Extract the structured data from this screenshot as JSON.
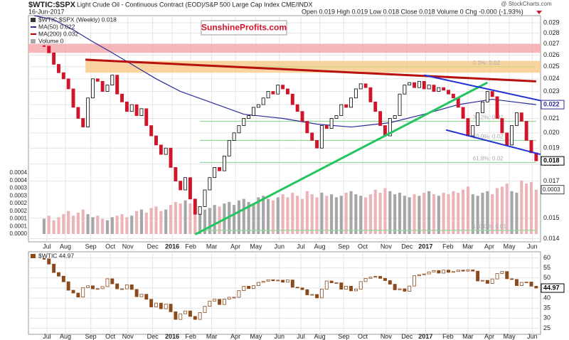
{
  "chart_data": [
    {
      "type": "candlestick",
      "symbol": "$WTIC:$SPX",
      "title": "Light Crude Oil - Continuous Contract (EOD)/S&P 500 Large Cap Index CME/INDX",
      "source": "@ StockCharts.com",
      "date": "16-Jun-2017",
      "quote": "Open 0.019  High 0.019  Low 0.018  Close 0.018  Volume 0  Chg -0.000 (-1.93%)",
      "legend": [
        {
          "text": "$WTIC:$SPX (Weekly) 0.018",
          "color": "#333333"
        },
        {
          "text": "MA(50) 0.022",
          "color": "#2b2b9a"
        },
        {
          "text": "MA(200) 0.032",
          "color": "#c00000"
        },
        {
          "text": "Volume 0",
          "color": "#a6a6a6"
        }
      ],
      "watermark": "SunshineProfits.com",
      "log_scale": true,
      "grid": true,
      "ylim": [
        0.01385,
        0.0297
      ],
      "yticks": [
        0.014,
        0.015,
        0.017,
        0.018,
        0.019,
        {
          "value": 0.02,
          "label": "0.020"
        },
        0.021,
        0.022,
        0.023,
        0.024,
        0.025,
        0.026,
        0.027,
        0.028,
        0.029
      ],
      "xlim": [
        -3.2,
        101.9
      ],
      "xticks": [
        {
          "value": 0.6,
          "label": "Jul"
        },
        {
          "value": 4.4,
          "label": "Aug"
        },
        {
          "value": 9.6,
          "label": "Sep"
        },
        {
          "value": 13.6,
          "label": "Oct"
        },
        {
          "value": 17.2,
          "label": "Nov"
        },
        {
          "value": 22.3,
          "label": "Dec"
        },
        {
          "value": 26.3,
          "label": "2016"
        },
        {
          "value": 30.1,
          "label": "Feb"
        },
        {
          "value": 34.4,
          "label": "Mar"
        },
        {
          "value": 39.3,
          "label": "Apr"
        },
        {
          "value": 43.5,
          "label": "May"
        },
        {
          "value": 48.3,
          "label": "Jun"
        },
        {
          "value": 52.7,
          "label": "Jul"
        },
        {
          "value": 56.6,
          "label": "Aug"
        },
        {
          "value": 61.5,
          "label": "Sep"
        },
        {
          "value": 65.4,
          "label": "Oct"
        },
        {
          "value": 70.2,
          "label": "Nov"
        },
        {
          "value": 74.5,
          "label": "Dec"
        },
        {
          "value": 78.3,
          "label": "2017"
        },
        {
          "value": 82.9,
          "label": "Feb"
        },
        {
          "value": 87,
          "label": "Mar"
        },
        {
          "value": 91.4,
          "label": "Apr"
        },
        {
          "value": 95.5,
          "label": "May"
        },
        {
          "value": 100.2,
          "label": "Jun"
        }
      ],
      "up_color": "#ffffff",
      "down_color": "#d0152b",
      "outline": "#000000",
      "close": [
        0.0268,
        0.0262,
        0.0252,
        0.0245,
        0.024,
        0.0232,
        0.0218,
        0.021,
        0.0204,
        0.0225,
        0.024,
        0.0238,
        0.023,
        0.0235,
        0.0243,
        0.0228,
        0.0222,
        0.0215,
        0.022,
        0.0212,
        0.0217,
        0.0205,
        0.0198,
        0.0192,
        0.0186,
        0.019,
        0.0178,
        0.017,
        0.0165,
        0.0172,
        0.016,
        0.0152,
        0.0156,
        0.0165,
        0.0172,
        0.0178,
        0.0176,
        0.0185,
        0.0195,
        0.02,
        0.0205,
        0.021,
        0.0212,
        0.0218,
        0.022,
        0.0225,
        0.023,
        0.0228,
        0.0235,
        0.0232,
        0.0228,
        0.022,
        0.0215,
        0.0208,
        0.02,
        0.0195,
        0.019,
        0.0205,
        0.0203,
        0.021,
        0.0212,
        0.022,
        0.0218,
        0.0225,
        0.0232,
        0.0236,
        0.0233,
        0.0222,
        0.0215,
        0.0205,
        0.0198,
        0.021,
        0.0212,
        0.0228,
        0.0235,
        0.0237,
        0.0233,
        0.0238,
        0.0232,
        0.0235,
        0.023,
        0.0233,
        0.0231,
        0.0228,
        0.0225,
        0.0218,
        0.021,
        0.0198,
        0.0205,
        0.0214,
        0.0222,
        0.023,
        0.0226,
        0.021,
        0.02,
        0.0192,
        0.0205,
        0.0214,
        0.0208,
        0.0195,
        0.0187,
        0.0182
      ],
      "last_labels": [
        {
          "value": 0.022,
          "label": "0.022",
          "color": "#2b2b9a"
        },
        {
          "value": 0.0182,
          "label": "0.018",
          "color": "#000000"
        }
      ],
      "ma50": {
        "name": "MA(50)",
        "color": "#2b2b9a",
        "x": [
          -2,
          2,
          6,
          10,
          14,
          18,
          23,
          28,
          34,
          41,
          49,
          56,
          63,
          71,
          78,
          85,
          92,
          101
        ],
        "values": [
          0.0297,
          0.0293,
          0.0283,
          0.0272,
          0.0262,
          0.0252,
          0.024,
          0.023,
          0.0222,
          0.0213,
          0.021,
          0.0206,
          0.0204,
          0.0207,
          0.0213,
          0.022,
          0.0224,
          0.022
        ]
      },
      "bands": [
        {
          "low": 0.0262,
          "high": 0.027,
          "color": "#f2a5a8",
          "x": [
            -3.2,
            101.9
          ]
        },
        {
          "low": 0.0245,
          "high": 0.0255,
          "color": "#f8c98a",
          "x": [
            8.5,
            101.9
          ]
        }
      ],
      "trendlines": [
        {
          "color": "#b80f0f",
          "width": 3,
          "x": [
            8.5,
            101
          ],
          "values": [
            0.0256,
            0.0238
          ]
        },
        {
          "color": "#22c55e",
          "width": 3,
          "x": [
            31,
            91
          ],
          "values": [
            0.0142,
            0.0237
          ]
        },
        {
          "color": "#1f2fd0",
          "width": 2,
          "x": [
            78,
            101.9
          ],
          "values": [
            0.0243,
            0.0223
          ]
        },
        {
          "color": "#1f2fd0",
          "width": 2,
          "x": [
            82.5,
            101.9
          ],
          "values": [
            0.0202,
            0.0186
          ]
        }
      ],
      "fib_color": "#93d69b",
      "fib_x": [
        32,
        101
      ],
      "fib": [
        {
          "value": 0.025,
          "label": "0.0%: 0.02"
        },
        {
          "value": 0.0208,
          "label": "38.2%: 0.02"
        },
        {
          "value": 0.0195,
          "label": "50.0%: 0.02"
        },
        {
          "value": 0.0181,
          "label": "61.8%: 0.02"
        },
        {
          "value": 0.0144,
          "label": "100.0%: 0.01"
        }
      ],
      "volume": {
        "up_color": "#a6a6a6",
        "down_color": "#ecb3b8",
        "ylim": [
          0,
          0.0004
        ],
        "yticks": [
          {
            "value": 0,
            "label": "0.0000"
          },
          {
            "value": 5e-05,
            "label": "0.0001"
          },
          {
            "value": 0.0001,
            "label": "0.0001"
          },
          {
            "value": 0.00015,
            "label": "0.0002"
          },
          {
            "value": 0.0002,
            "label": "0.0002"
          },
          {
            "value": 0.00025,
            "label": "0.0003"
          },
          {
            "value": 0.0003,
            "label": "0.0003"
          },
          {
            "value": 0.00035,
            "label": "0.0004"
          },
          {
            "value": 0.0004,
            "label": "0.0004"
          }
        ],
        "last_label": {
          "value": 0.00029,
          "label": "0.0003"
        },
        "values": [
          0.0001,
          0.00012,
          9e-05,
          0.00011,
          0.00013,
          0.00015,
          0.00012,
          0.00014,
          0.00016,
          0.00013,
          0.00011,
          0.00012,
          0.0001,
          9e-05,
          0.00011,
          0.00012,
          0.00013,
          0.00011,
          0.00012,
          0.00015,
          0.00016,
          0.00014,
          0.00017,
          0.00018,
          0.00015,
          0.00016,
          0.00019,
          0.00021,
          0.0002,
          0.00022,
          0.0002,
          0.00018,
          0.00015,
          0.00016,
          0.00017,
          0.00019,
          0.00018,
          0.0002,
          0.00021,
          0.00019,
          0.00022,
          0.00023,
          0.00021,
          0.0002,
          0.00024,
          0.00025,
          0.00023,
          0.00022,
          0.00024,
          0.00026,
          0.00024,
          0.00027,
          0.00025,
          0.00023,
          0.00028,
          0.00026,
          0.00024,
          0.00027,
          0.00025,
          0.00026,
          0.00024,
          0.00025,
          0.00027,
          0.00028,
          0.00026,
          0.00025,
          0.00024,
          0.00026,
          0.00029,
          0.00027,
          0.0003,
          0.00028,
          0.00026,
          0.00027,
          0.00025,
          0.00024,
          0.00026,
          0.00025,
          0.00027,
          0.00028,
          0.00026,
          0.00025,
          0.00027,
          0.00026,
          0.00028,
          0.00027,
          0.00029,
          0.00031,
          0.00026,
          0.00025,
          0.00027,
          0.00028,
          0.00026,
          0.0003,
          0.00031,
          0.00033,
          0.00028,
          0.00027,
          0.00035,
          0.00033,
          0.00034,
          0.00029
        ]
      }
    },
    {
      "type": "candlestick",
      "legend": "$WTIC 44.97",
      "grid": true,
      "ylim": [
        22,
        63
      ],
      "yticks": [
        25,
        30,
        35,
        40,
        45,
        50,
        55,
        60
      ],
      "up_color": "#ffffff",
      "down_color": "#8b4a1c",
      "outline": "#8b4a1c",
      "last_label": {
        "value": 44.97,
        "label": "44.97"
      },
      "close": [
        59.5,
        56.9,
        52.7,
        50.9,
        48.1,
        43.9,
        42.5,
        40.5,
        45.2,
        46.1,
        44.6,
        44.7,
        45.7,
        49.6,
        47.1,
        44.6,
        44.6,
        46.6,
        44.3,
        40.7,
        41.9,
        39.4,
        35.6,
        37.5,
        34.7,
        37.0,
        33.2,
        29.4,
        32.2,
        33.6,
        30.9,
        29.4,
        32.8,
        35.9,
        38.5,
        39.4,
        36.8,
        39.5,
        40.4,
        40.4,
        43.7,
        45.9,
        44.7,
        46.2,
        47.8,
        48.4,
        49.1,
        48.6,
        48.9,
        47.9,
        49.0,
        45.4,
        45.1,
        44.2,
        41.6,
        41.8,
        40.1,
        44.5,
        48.5,
        47.6,
        47.6,
        44.4,
        45.9,
        43.6,
        44.5,
        48.2,
        49.8,
        50.4,
        50.8,
        49.8,
        48.7,
        46.9,
        44.1,
        44.6,
        43.4,
        46.0,
        51.1,
        51.6,
        52.0,
        53.0,
        53.7,
        52.4,
        53.9,
        52.8,
        53.2,
        53.9,
        53.4,
        54.0,
        53.4,
        48.5,
        48.8,
        47.3,
        49.5,
        52.2,
        53.2,
        49.6,
        49.3,
        46.2,
        47.8,
        48.0,
        45.9,
        44.97
      ]
    }
  ]
}
